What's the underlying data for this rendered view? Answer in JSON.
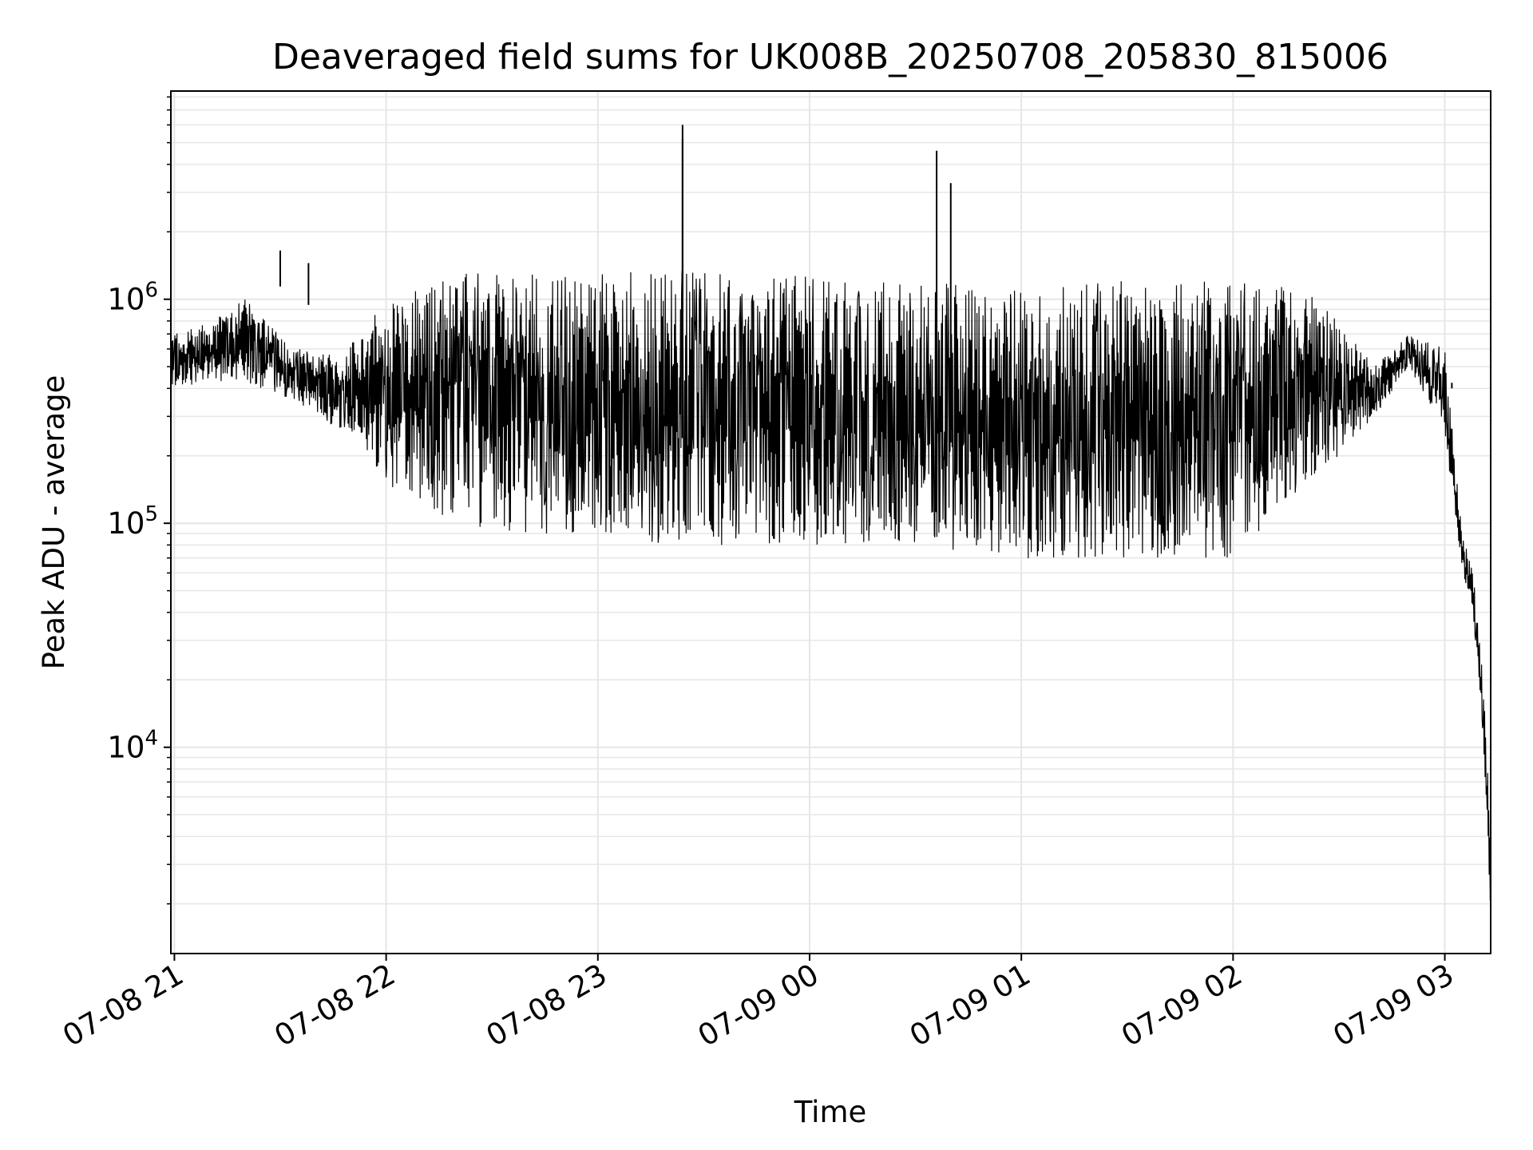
{
  "chart_data": {
    "type": "line",
    "title": "Deaveraged field sums for UK008B_20250708_205830_815006",
    "xlabel": "Time",
    "ylabel": "Peak ADU - average",
    "yscale": "log",
    "grid": true,
    "line_color": "#000000",
    "grid_color": "#e6e6e6",
    "xlim": [
      "07-08 20:59",
      "07-09 03:13"
    ],
    "ylim": [
      1200,
      8500000
    ],
    "x_ticks": [
      "07-08 21",
      "07-08 22",
      "07-08 23",
      "07-09 00",
      "07-09 01",
      "07-09 02",
      "07-09 03"
    ],
    "y_ticks": [
      {
        "base": "10",
        "exp": "4",
        "value": 10000
      },
      {
        "base": "10",
        "exp": "5",
        "value": 100000
      },
      {
        "base": "10",
        "exp": "6",
        "value": 1000000
      }
    ],
    "envelope": {
      "time": [
        "07-08 20:59",
        "07-08 21:10",
        "07-08 21:20",
        "07-08 21:30",
        "07-08 21:40",
        "07-08 21:50",
        "07-08 22:00",
        "07-08 22:20",
        "07-08 22:40",
        "07-08 23:00",
        "07-08 23:20",
        "07-08 23:40",
        "07-09 00:00",
        "07-09 00:30",
        "07-09 01:00",
        "07-09 01:30",
        "07-09 02:00",
        "07-09 02:20",
        "07-09 02:30",
        "07-09 02:40",
        "07-09 02:50",
        "07-09 03:00",
        "07-09 03:05",
        "07-09 03:08",
        "07-09 03:10",
        "07-09 03:12",
        "07-09 03:13"
      ],
      "upper": [
        700000,
        800000,
        1000000,
        700000,
        550000,
        650000,
        1000000,
        1300000,
        1300000,
        1300000,
        1400000,
        1300000,
        1300000,
        1200000,
        1200000,
        1200000,
        1200000,
        1100000,
        800000,
        500000,
        700000,
        600000,
        90000,
        60000,
        30000,
        10000,
        3000
      ],
      "lower": [
        400000,
        430000,
        420000,
        380000,
        300000,
        250000,
        150000,
        100000,
        90000,
        90000,
        80000,
        80000,
        80000,
        80000,
        70000,
        70000,
        70000,
        150000,
        200000,
        300000,
        500000,
        250000,
        60000,
        40000,
        15000,
        5000,
        1500
      ]
    },
    "spikes": [
      {
        "time": "07-08 21:30",
        "value": 1650000
      },
      {
        "time": "07-08 21:38",
        "value": 1450000
      },
      {
        "time": "07-08 23:24",
        "value": 6000000
      },
      {
        "time": "07-08 23:24",
        "value": 5200000
      },
      {
        "time": "07-09 00:36",
        "value": 4600000
      },
      {
        "time": "07-09 00:40",
        "value": 3300000
      },
      {
        "time": "07-09 03:02",
        "value": 400000
      }
    ]
  }
}
